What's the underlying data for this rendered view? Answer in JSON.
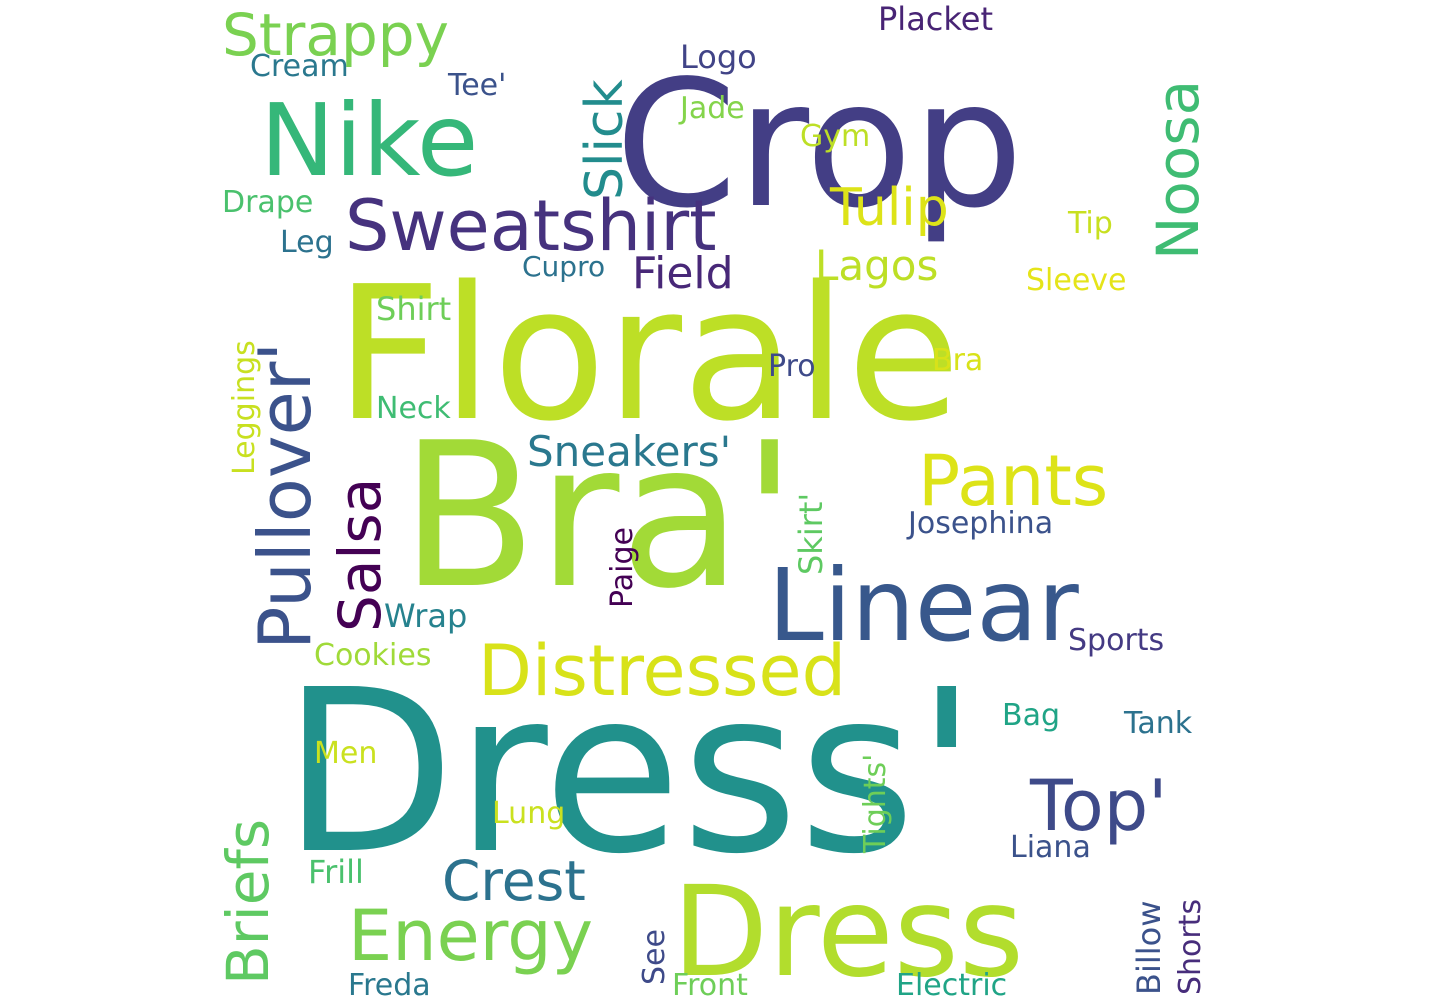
{
  "words": [
    {
      "text": "Dress'",
      "color": "#21918c"
    },
    {
      "text": "Bra'",
      "color": "#a2da37"
    },
    {
      "text": "Florale",
      "color": "#bddf26"
    },
    {
      "text": "Crop",
      "color": "#433e85"
    },
    {
      "text": "Dress",
      "color": "#b2dd2d"
    },
    {
      "text": "Linear",
      "color": "#38588c"
    },
    {
      "text": "Nike",
      "color": "#35b779"
    },
    {
      "text": "Sweatshirt",
      "color": "#46327e"
    },
    {
      "text": "Distressed",
      "color": "#d8e219"
    },
    {
      "text": "Pullover'",
      "color": "#3b528b"
    },
    {
      "text": "Energy",
      "color": "#7ad151"
    },
    {
      "text": "Pants",
      "color": "#dde318"
    },
    {
      "text": "Top'",
      "color": "#3e4a89"
    },
    {
      "text": "Strappy",
      "color": "#7ad151"
    },
    {
      "text": "Briefs",
      "color": "#5ec962"
    },
    {
      "text": "Noosa",
      "color": "#3fbc73"
    },
    {
      "text": "Salsa",
      "color": "#440154"
    },
    {
      "text": "Crest",
      "color": "#2c728e"
    },
    {
      "text": "Slick",
      "color": "#228c8d"
    },
    {
      "text": "Tulip",
      "color": "#dde318"
    },
    {
      "text": "Field",
      "color": "#482878"
    },
    {
      "text": "Sneakers'",
      "color": "#2a788e"
    },
    {
      "text": "Lagos",
      "color": "#bddf26"
    },
    {
      "text": "Placket",
      "color": "#482475"
    },
    {
      "text": "Logo",
      "color": "#414487"
    },
    {
      "text": "Cream",
      "color": "#2a788e"
    },
    {
      "text": "Tee'",
      "color": "#3b528b"
    },
    {
      "text": "Jade",
      "color": "#84d44b"
    },
    {
      "text": "Gym",
      "color": "#bddf26"
    },
    {
      "text": "Drape",
      "color": "#4ac16d"
    },
    {
      "text": "Tip",
      "color": "#c8e020"
    },
    {
      "text": "Leg",
      "color": "#2c728e"
    },
    {
      "text": "Cupro",
      "color": "#2c728e"
    },
    {
      "text": "Sleeve",
      "color": "#e5e419"
    },
    {
      "text": "Shirt",
      "color": "#6ece58"
    },
    {
      "text": "Pro",
      "color": "#3e4a89"
    },
    {
      "text": "Bra",
      "color": "#d8e219"
    },
    {
      "text": "Leggings",
      "color": "#c8e020"
    },
    {
      "text": "Neck",
      "color": "#3fbc73"
    },
    {
      "text": "Josephina",
      "color": "#3b528b"
    },
    {
      "text": "Skirt'",
      "color": "#5ec962"
    },
    {
      "text": "Paige",
      "color": "#440154"
    },
    {
      "text": "Wrap",
      "color": "#26828e"
    },
    {
      "text": "Sports",
      "color": "#443a83"
    },
    {
      "text": "Cookies",
      "color": "#a0da39"
    },
    {
      "text": "Bag",
      "color": "#20a486"
    },
    {
      "text": "Tank",
      "color": "#2c728e"
    },
    {
      "text": "Men",
      "color": "#cae11f"
    },
    {
      "text": "Tights'",
      "color": "#6ece58"
    },
    {
      "text": "Lung",
      "color": "#cae11f"
    },
    {
      "text": "Liana",
      "color": "#3b528b"
    },
    {
      "text": "Frill",
      "color": "#4ac16d"
    },
    {
      "text": "Billow",
      "color": "#3b528b"
    },
    {
      "text": "Shorts",
      "color": "#472d7b"
    },
    {
      "text": "See",
      "color": "#3e4a89"
    },
    {
      "text": "Freda",
      "color": "#2a788e"
    },
    {
      "text": "Front",
      "color": "#6ece58"
    },
    {
      "text": "Electric",
      "color": "#20a486"
    }
  ]
}
